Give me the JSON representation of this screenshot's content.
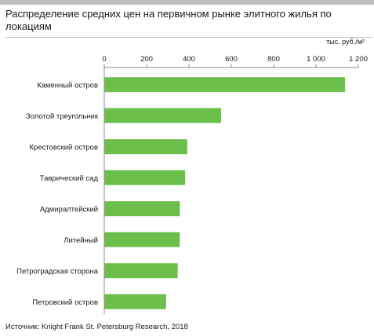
{
  "chart_data": {
    "type": "bar",
    "orientation": "horizontal",
    "title": "Распределение средних цен на первичном рынке элитного жилья по локациям",
    "unit_label": "тыс. руб./м²",
    "categories": [
      "Каменный остров",
      "Золотой треугольник",
      "Крестовский остров",
      "Таврический сад",
      "Адмиралтейский",
      "Литейный",
      "Петроградская сторона",
      "Петровский остров"
    ],
    "values": [
      1135,
      550,
      390,
      380,
      355,
      355,
      345,
      290
    ],
    "xlim": [
      0,
      1200
    ],
    "xticks": [
      0,
      200,
      400,
      600,
      800,
      1000,
      1200
    ],
    "xtick_labels": [
      "0",
      "200",
      "400",
      "600",
      "800",
      "1 000",
      "1 200"
    ],
    "axis_position": "top",
    "grid": false,
    "bar_color": "#6cbf4b"
  },
  "source": "Источник: Knight Frank St. Petersburg Research, 2018"
}
